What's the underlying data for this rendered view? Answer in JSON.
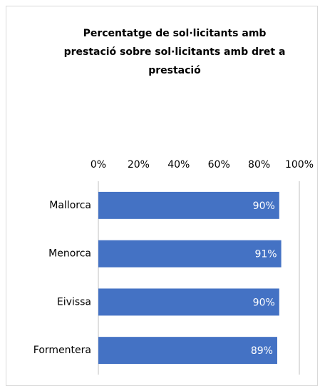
{
  "chart_data": {
    "type": "hbar",
    "title": "Percentatge de sol·licitants amb\nprestació sobre sol·licitants amb dret a\nprestació",
    "categories": [
      "Mallorca",
      "Menorca",
      "Eivissa",
      "Formentera"
    ],
    "values": [
      90,
      91,
      90,
      89
    ],
    "value_labels": [
      "90%",
      "91%",
      "90%",
      "89%"
    ],
    "color": "#4472c4",
    "xlim": [
      0,
      100
    ],
    "xticks": [
      {
        "value": 0,
        "label": "0%"
      },
      {
        "value": 20,
        "label": "20%"
      },
      {
        "value": 40,
        "label": "40%"
      },
      {
        "value": 60,
        "label": "60%"
      },
      {
        "value": 80,
        "label": "80%"
      },
      {
        "value": 100,
        "label": "100%"
      }
    ],
    "grid": false
  }
}
